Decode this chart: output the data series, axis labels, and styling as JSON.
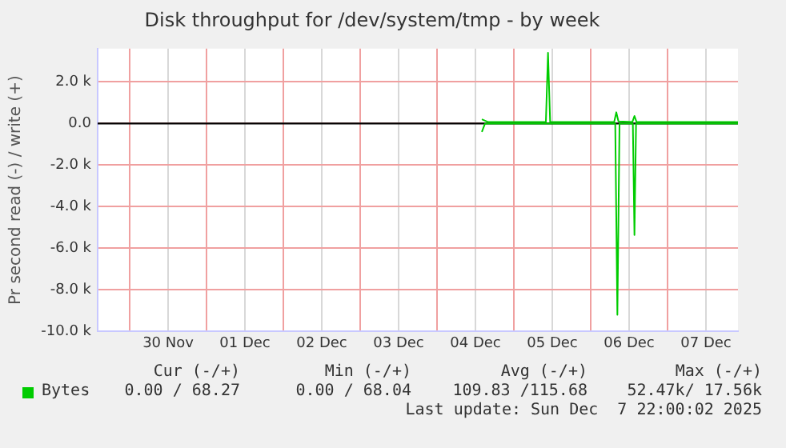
{
  "chart_data": {
    "type": "line",
    "title": "Disk throughput for /dev/system/tmp - by week",
    "ylabel": "Pr second read (-) / write (+)",
    "xlim": [
      "2025-11-29T14:00",
      "2025-12-07T22:00"
    ],
    "xticks": [
      {
        "value": "2025-11-30T00:00",
        "label": null
      },
      {
        "value": "2025-11-30T12:00",
        "label": "30 Nov"
      },
      {
        "value": "2025-12-01T00:00",
        "label": null
      },
      {
        "value": "2025-12-01T12:00",
        "label": "01 Dec"
      },
      {
        "value": "2025-12-02T00:00",
        "label": null
      },
      {
        "value": "2025-12-02T12:00",
        "label": "02 Dec"
      },
      {
        "value": "2025-12-03T00:00",
        "label": null
      },
      {
        "value": "2025-12-03T12:00",
        "label": "03 Dec"
      },
      {
        "value": "2025-12-04T00:00",
        "label": null
      },
      {
        "value": "2025-12-04T12:00",
        "label": "04 Dec"
      },
      {
        "value": "2025-12-05T00:00",
        "label": null
      },
      {
        "value": "2025-12-05T12:00",
        "label": "05 Dec"
      },
      {
        "value": "2025-12-06T00:00",
        "label": null
      },
      {
        "value": "2025-12-06T12:00",
        "label": "06 Dec"
      },
      {
        "value": "2025-12-07T00:00",
        "label": null
      },
      {
        "value": "2025-12-07T12:00",
        "label": "07 Dec"
      }
    ],
    "ylim": [
      -10000,
      3600
    ],
    "yticks": [
      {
        "value": -10000,
        "label": "-10.0 k"
      },
      {
        "value": -8000,
        "label": "-8.0 k"
      },
      {
        "value": -6000,
        "label": "-6.0 k"
      },
      {
        "value": -4000,
        "label": "-4.0 k"
      },
      {
        "value": -2000,
        "label": "-2.0 k"
      },
      {
        "value": 0,
        "label": "0.0"
      },
      {
        "value": 2000,
        "label": "2.0 k"
      }
    ],
    "grid": true,
    "legend": "bottom",
    "marker": "none",
    "line_style": "solid",
    "ref_lines": [
      {
        "axis": "y",
        "value": 0,
        "color": "#000000"
      }
    ],
    "series": [
      {
        "name": "Bytes",
        "color": "#00cc00",
        "x": [
          "2025-12-04T14:00",
          "2025-12-04T16:00",
          "2025-12-05T10:00",
          "2025-12-05T10:40",
          "2025-12-05T11:20",
          "2025-12-06T07:20",
          "2025-12-06T08:00",
          "2025-12-06T08:40",
          "2025-12-06T13:00",
          "2025-12-06T13:40",
          "2025-12-06T14:20",
          "2025-12-07T22:00"
        ],
        "values": [
          200,
          70,
          70,
          3400,
          70,
          70,
          540,
          100,
          70,
          360,
          70,
          70
        ]
      },
      {
        "color": "#00cc00",
        "x": [
          "2025-12-04T14:00",
          "2025-12-04T15:00",
          "2025-12-06T07:40",
          "2025-12-06T08:20",
          "2025-12-06T09:00",
          "2025-12-06T13:10",
          "2025-12-06T13:40",
          "2025-12-06T14:10",
          "2025-12-07T22:00"
        ],
        "values": [
          -400,
          0,
          0,
          -9200,
          0,
          0,
          -5360,
          0,
          0
        ]
      }
    ],
    "annotations": [
      "Cur (-/+)",
      "Min (-/+)",
      "Avg (-/+)",
      "Max (-/+)",
      "0.00 / 68.27",
      "0.00 / 68.04",
      "109.83 /115.68",
      "52.47k/ 17.56k",
      "Last update: Sun Dec  7 22:00:02 2025"
    ]
  }
}
